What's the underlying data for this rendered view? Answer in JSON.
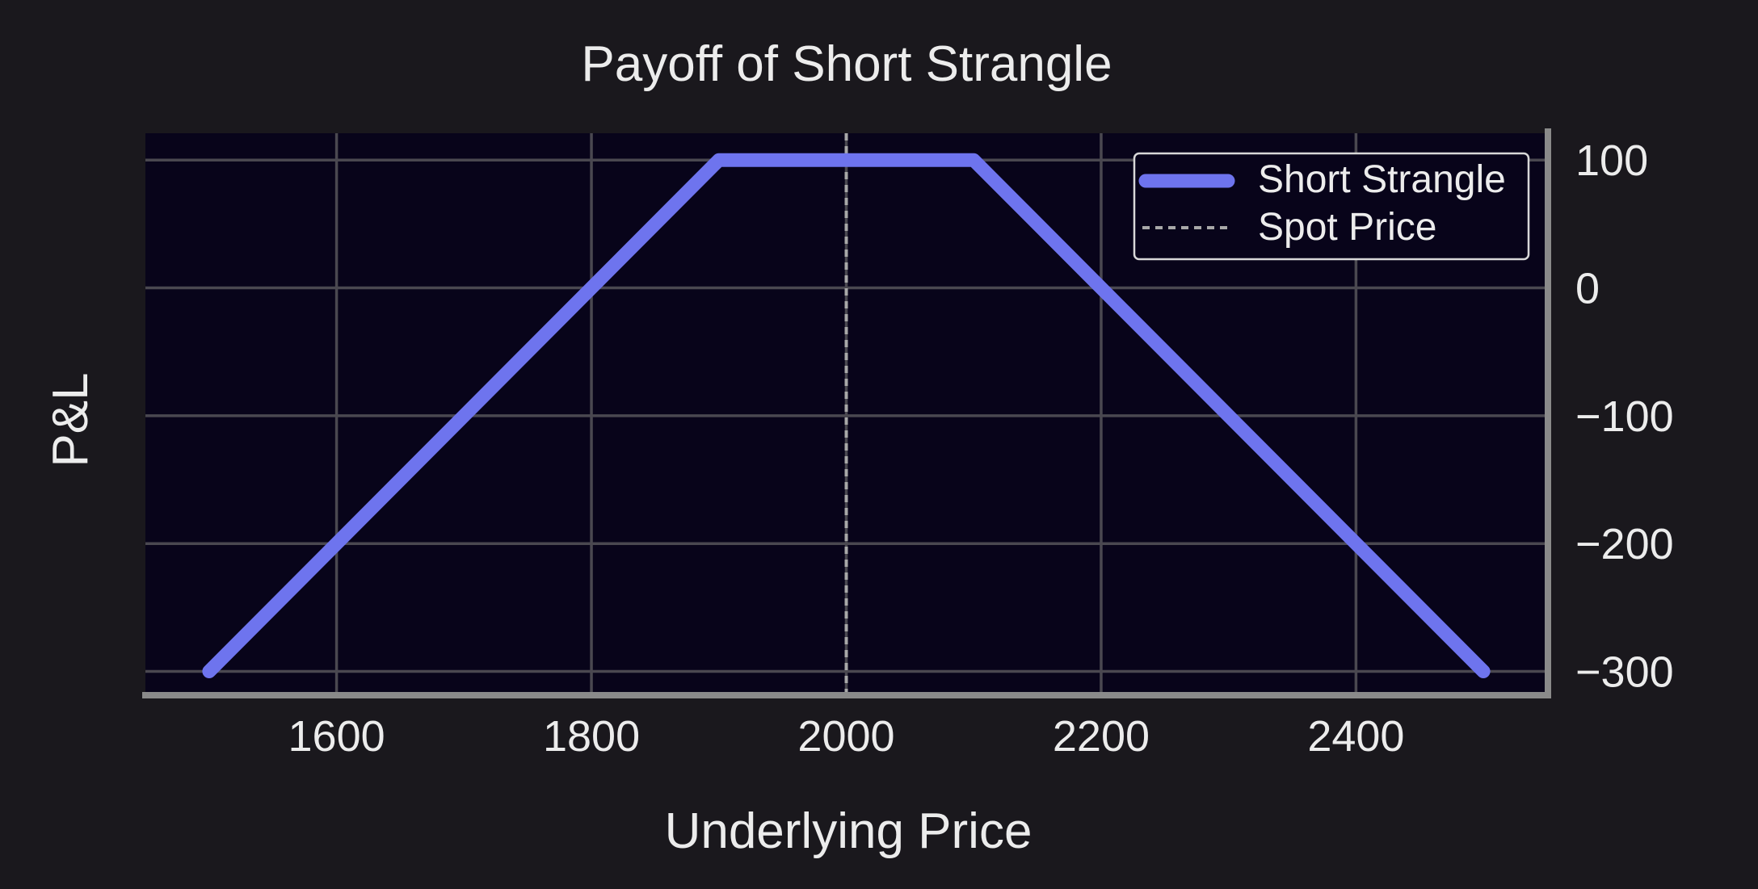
{
  "chart_data": {
    "type": "line",
    "title": "Payoff of Short Strangle",
    "xlabel": "Underlying Price",
    "ylabel": "P&L",
    "xlim": [
      1450,
      2550
    ],
    "ylim": [
      -318,
      121
    ],
    "x_ticks": [
      1600,
      1800,
      2000,
      2200,
      2400
    ],
    "y_ticks": [
      100,
      0,
      -100,
      -200,
      -300
    ],
    "x_tick_labels": [
      "1600",
      "1800",
      "2000",
      "2200",
      "2400"
    ],
    "y_tick_labels": [
      "100",
      "0",
      "−100",
      "−200",
      "−300"
    ],
    "y_axis_position": "right",
    "grid": true,
    "legend": {
      "position": "top-right",
      "entries": [
        "Short Strangle",
        "Spot Price"
      ]
    },
    "series": [
      {
        "name": "Short Strangle",
        "color": "#6e74ee",
        "x": [
          1500,
          1900,
          2100,
          2500
        ],
        "y": [
          -300,
          100,
          100,
          -300
        ]
      }
    ],
    "reference_lines": [
      {
        "name": "Spot Price",
        "orientation": "vertical",
        "x": 2000,
        "style": "dashed",
        "color": "#a8a8a8"
      }
    ],
    "colors": {
      "background": "#1a181d",
      "plot_background": "#08041a",
      "grid": "#4a4850",
      "spine": "#8a8a8a",
      "text": "#ececec"
    }
  }
}
